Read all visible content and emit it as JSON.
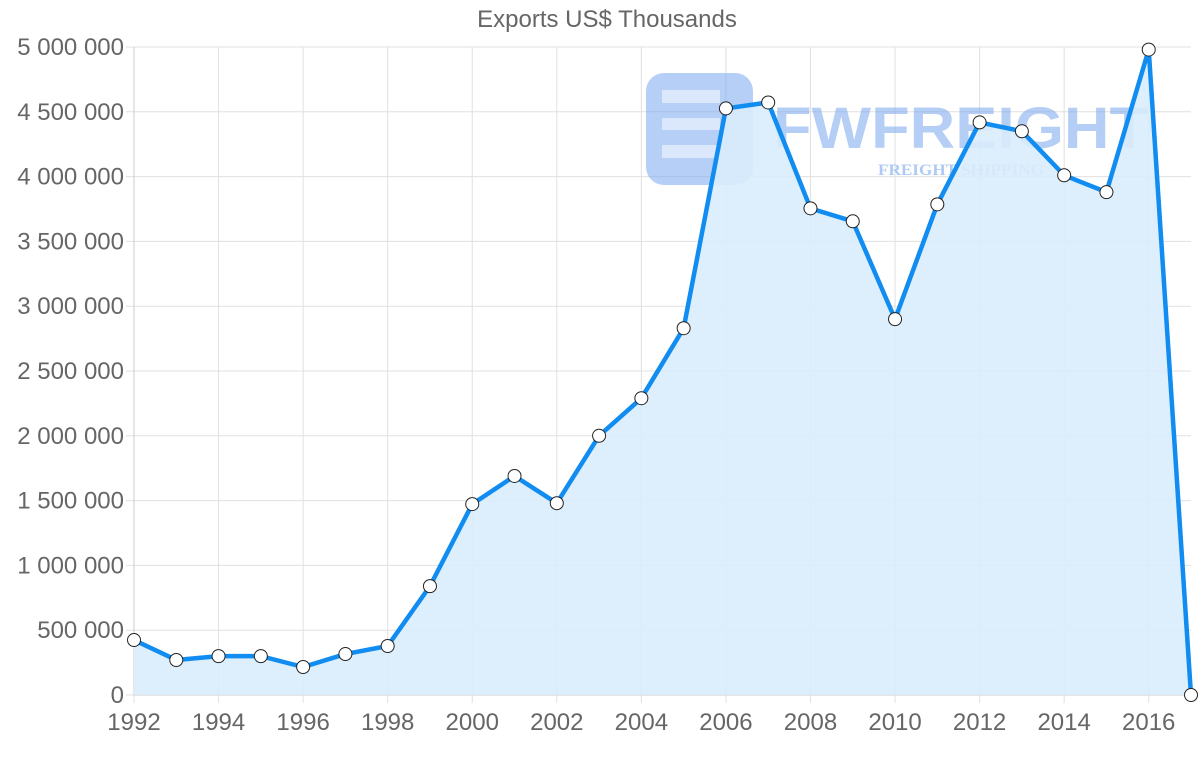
{
  "chart_data": {
    "type": "area",
    "title": "Exports US$ Thousands",
    "xlabel": "",
    "ylabel": "",
    "x": [
      1992,
      1993,
      1994,
      1995,
      1996,
      1997,
      1998,
      1999,
      2000,
      2001,
      2002,
      2003,
      2004,
      2005,
      2006,
      2007,
      2008,
      2009,
      2010,
      2011,
      2012,
      2013,
      2014,
      2015,
      2016,
      2017
    ],
    "series": [
      {
        "name": "Exports US$ Thousands",
        "values": [
          424000,
          270000,
          300000,
          300000,
          216000,
          316000,
          378000,
          840000,
          1473000,
          1690000,
          1480000,
          2000000,
          2290000,
          2830000,
          4526000,
          4572000,
          3755000,
          3655000,
          2900000,
          3786000,
          4418000,
          4350000,
          4010000,
          3880000,
          4980000,
          0
        ]
      }
    ],
    "ylim": [
      0,
      5000000
    ],
    "yticks": [
      0,
      500000,
      1000000,
      1500000,
      2000000,
      2500000,
      3000000,
      3500000,
      4000000,
      4500000,
      5000000
    ],
    "ytick_labels": [
      "0",
      "500 000",
      "1 000 000",
      "1 500 000",
      "2 000 000",
      "2 500 000",
      "3 000 000",
      "3 500 000",
      "4 000 000",
      "4 500 000",
      "5 000 000"
    ],
    "xtick_labels": [
      "1992",
      "1994",
      "1996",
      "1998",
      "2000",
      "2002",
      "2004",
      "2006",
      "2008",
      "2010",
      "2012",
      "2014",
      "2016"
    ],
    "grid": true,
    "legend": null,
    "colors": {
      "line": "#118cf0",
      "fill": "#d9ecfc",
      "point_fill": "#ffffff",
      "point_stroke": "#222222",
      "grid": "#e0e0e0",
      "text": "#666666"
    }
  },
  "watermark": {
    "brand": "FWFREIGHT",
    "tagline": "FREIGHT SHIPPING",
    "logo": "fw-logo-icon"
  }
}
